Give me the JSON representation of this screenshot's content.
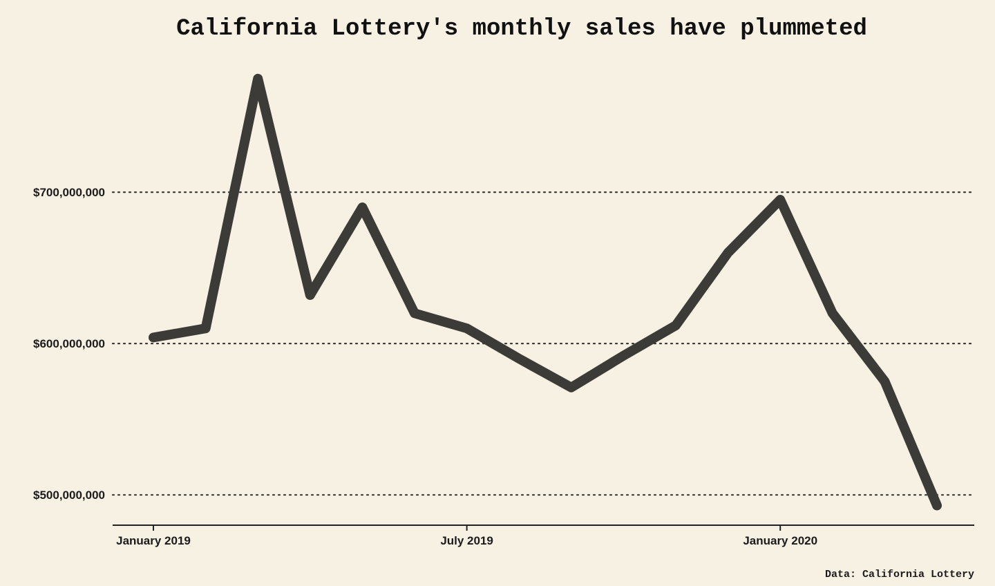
{
  "chart_data": {
    "type": "line",
    "title": "California Lottery's monthly sales have plummeted",
    "source": "Data: California Lottery",
    "xlabel": "",
    "ylabel": "",
    "x": [
      "2019-01",
      "2019-02",
      "2019-03",
      "2019-04",
      "2019-05",
      "2019-06",
      "2019-07",
      "2019-08",
      "2019-09",
      "2019-10",
      "2019-11",
      "2019-12",
      "2020-01",
      "2020-02",
      "2020-03",
      "2020-04"
    ],
    "series": [
      {
        "name": "Monthly sales",
        "values": [
          604000000,
          610000000,
          775000000,
          632000000,
          690000000,
          620000000,
          610000000,
          590000000,
          571000000,
          592000000,
          612000000,
          660000000,
          695000000,
          620000000,
          575000000,
          493000000
        ]
      }
    ],
    "ylim": [
      480000000,
      795000000
    ],
    "yticks": [
      {
        "value": 500000000,
        "label": "$500,000,000"
      },
      {
        "value": 600000000,
        "label": "$600,000,000"
      },
      {
        "value": 700000000,
        "label": "$700,000,000"
      }
    ],
    "xticks": [
      {
        "index": 0,
        "label": "January 2019"
      },
      {
        "index": 6,
        "label": "July 2019"
      },
      {
        "index": 12,
        "label": "January 2020"
      }
    ],
    "grid": "horizontal-dotted",
    "colors": {
      "background": "#f7f1e4",
      "line": "#3d3b37",
      "text": "#111111"
    }
  }
}
